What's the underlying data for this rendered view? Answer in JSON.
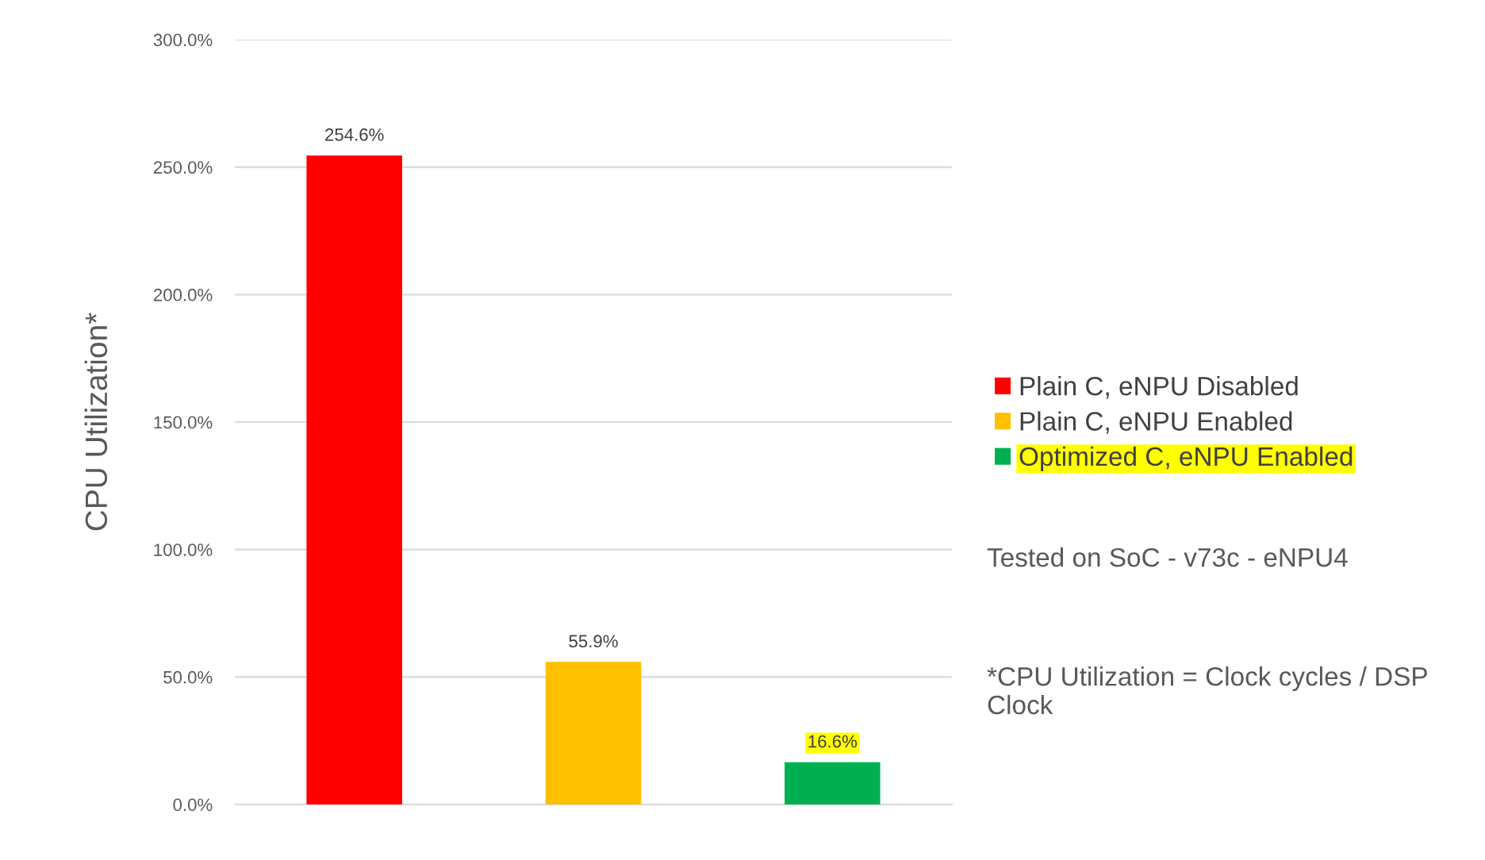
{
  "chart_data": {
    "type": "bar",
    "ylabel": "CPU Utilization*",
    "categories": [
      null,
      null,
      null
    ],
    "series": [
      {
        "name": "Plain C, eNPU Disabled",
        "color": "#ff0000",
        "values": [
          254.6,
          null,
          null
        ],
        "value_labels": [
          "254.6%",
          null,
          null
        ]
      },
      {
        "name": "Plain C, eNPU Enabled",
        "color": "#ffc000",
        "values": [
          null,
          55.9,
          null
        ],
        "value_labels": [
          null,
          "55.9%",
          null
        ]
      },
      {
        "name": "Optimized C, eNPU Enabled",
        "color": "#00b050",
        "values": [
          null,
          null,
          16.6
        ],
        "value_labels": [
          null,
          null,
          "16.6%"
        ]
      }
    ],
    "ylim": [
      0,
      300
    ],
    "yticks": [
      {
        "value": 0,
        "label": "0.0%"
      },
      {
        "value": 50,
        "label": "50.0%"
      },
      {
        "value": 100,
        "label": "100.0%"
      },
      {
        "value": 150,
        "label": "150.0%"
      },
      {
        "value": 200,
        "label": "200.0%"
      },
      {
        "value": 250,
        "label": "250.0%"
      },
      {
        "value": 300,
        "label": "300.0%"
      }
    ],
    "grid": "y",
    "legend": "right",
    "annotations": [
      "Tested on SoC - v73c - eNPU4",
      "*CPU Utilization = Clock cycles / DSP Clock"
    ]
  }
}
